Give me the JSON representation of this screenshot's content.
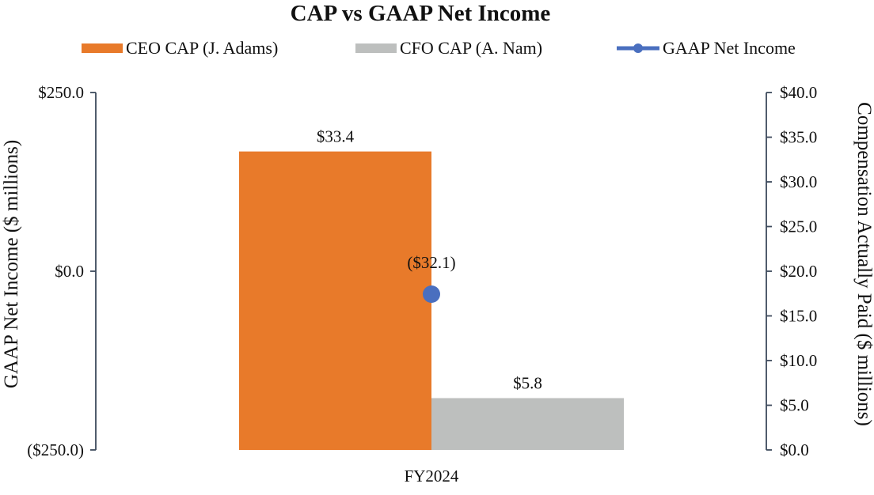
{
  "chart_data": {
    "type": "bar",
    "title": "CAP vs GAAP Net Income",
    "categories": [
      "FY2024"
    ],
    "series": [
      {
        "name": "CEO CAP (J. Adams)",
        "kind": "bar",
        "axis": "right",
        "color": "#E87A2A",
        "values": [
          33.4
        ],
        "labels": [
          "$33.4"
        ]
      },
      {
        "name": "CFO CAP (A. Nam)",
        "kind": "bar",
        "axis": "right",
        "color": "#BDBFBE",
        "values": [
          5.8
        ],
        "labels": [
          "$5.8"
        ]
      },
      {
        "name": "GAAP Net Income",
        "kind": "line-marker",
        "axis": "left",
        "color": "#4A6FBF",
        "values": [
          -32.1
        ],
        "labels": [
          "($32.1)"
        ]
      }
    ],
    "left_axis": {
      "label": "GAAP Net Income ($ millions)",
      "range": [
        -250,
        250
      ],
      "ticks": [
        250,
        0,
        -250
      ],
      "tick_labels": [
        "$250.0",
        "$0.0",
        "($250.0)"
      ]
    },
    "right_axis": {
      "label": "Compensation Actually Paid ($ millions)",
      "range": [
        0,
        40
      ],
      "ticks": [
        40,
        35,
        30,
        25,
        20,
        15,
        10,
        5,
        0
      ],
      "tick_labels": [
        "$40.0",
        "$35.0",
        "$30.0",
        "$25.0",
        "$20.0",
        "$15.0",
        "$10.0",
        "$5.0",
        "$0.0"
      ]
    },
    "axis_color": "#3D4A5C",
    "legend_position": "top",
    "grid": false
  }
}
